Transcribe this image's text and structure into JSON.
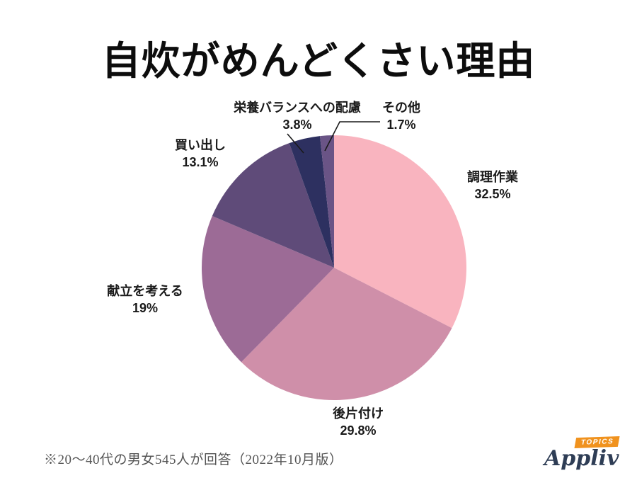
{
  "page": {
    "background": "#ffffff"
  },
  "chart_data": {
    "type": "pie",
    "title": "自炊がめんどくさい理由",
    "start_angle_deg": 0,
    "direction": "clockwise",
    "legend": "none",
    "labels_position": "outside",
    "slices": [
      {
        "id": "cooking",
        "label": "調理作業",
        "value": 32.5,
        "pct_label": "32.5%",
        "color": "#f9b4bf"
      },
      {
        "id": "cleanup",
        "label": "後片付け",
        "value": 29.8,
        "pct_label": "29.8%",
        "color": "#cf8fa9"
      },
      {
        "id": "menu-planning",
        "label": "献立を考える",
        "value": 19,
        "pct_label": "19%",
        "color": "#9c6b96"
      },
      {
        "id": "shopping",
        "label": "買い出し",
        "value": 13.1,
        "pct_label": "13.1%",
        "color": "#5f4b79"
      },
      {
        "id": "nutrition-balance",
        "label": "栄養バランスへの配慮",
        "value": 3.8,
        "pct_label": "3.8%",
        "color": "#2d3060"
      },
      {
        "id": "other",
        "label": "その他",
        "value": 1.7,
        "pct_label": "1.7%",
        "color": "#6a5486"
      }
    ]
  },
  "footer": {
    "note": "※20～40代の男女545人が回答（2022年10月版）",
    "logo": {
      "brand": "Appliv",
      "badge": "TOPICS",
      "brand_color": "#2e3d55",
      "badge_color": "#f0921e"
    }
  }
}
